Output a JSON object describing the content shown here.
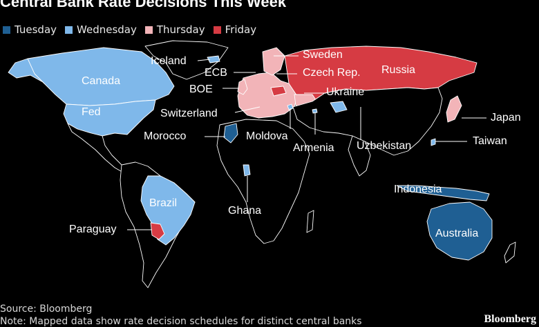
{
  "title": "Central Bank Rate Decisions This Week",
  "legend": [
    {
      "label": "Tuesday",
      "color": "#1f5f93"
    },
    {
      "label": "Wednesday",
      "color": "#7fb8ea"
    },
    {
      "label": "Thursday",
      "color": "#f2b4b8"
    },
    {
      "label": "Friday",
      "color": "#d63b43"
    }
  ],
  "labels": {
    "iceland": "Iceland",
    "canada": "Canada",
    "fed": "Fed",
    "ecb": "ECB",
    "boe": "BOE",
    "switzerland": "Switzerland",
    "morocco": "Morocco",
    "sweden": "Sweden",
    "czech": "Czech Rep.",
    "russia": "Russia",
    "ukraine": "Ukraine",
    "moldova": "Moldova",
    "armenia": "Armenia",
    "uzbekistan": "Uzbekistan",
    "japan": "Japan",
    "taiwan": "Taiwan",
    "indonesia": "Indonesia",
    "australia": "Australia",
    "brazil": "Brazil",
    "paraguay": "Paraguay",
    "ghana": "Ghana"
  },
  "source": "Source: Bloomberg",
  "note": "Note: Mapped data show rate decision schedules for distinct central banks",
  "brand": "Bloomberg"
}
